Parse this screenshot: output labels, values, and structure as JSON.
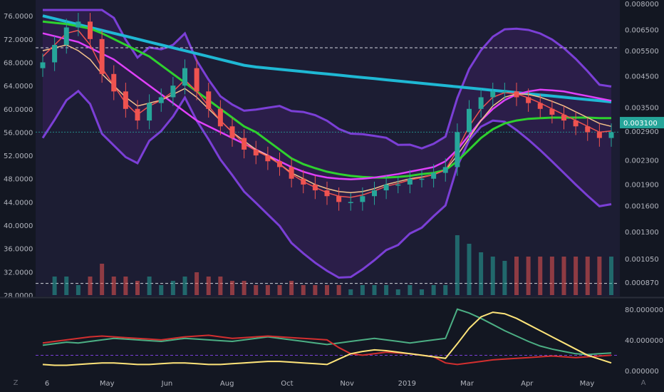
{
  "chart_data": {
    "type": "candlestick",
    "colors": {
      "background": "#131722",
      "panel": "#1c1d33",
      "band_fill": "#2e1f4d",
      "band_line": "#7b3fd6",
      "candle_up": "#26a69a",
      "candle_down": "#ef5350",
      "ma_cyan": "#1fb8d4",
      "ma_green": "#2ed12e",
      "ma_magenta": "#e040fb",
      "ma_orange": "#f5c38b",
      "ma_red": "#ef5350",
      "current_label": "#26a69a",
      "osc_green": "#4caf84",
      "osc_red": "#d32f2f",
      "osc_yellow": "#ffe57a",
      "text": "#b2b5be"
    },
    "left_axis": {
      "ticks": [
        "76.0000",
        "72.0000",
        "68.0000",
        "64.0000",
        "60.0000",
        "56.0000",
        "52.0000",
        "48.0000",
        "44.0000",
        "40.0000",
        "36.0000",
        "32.0000",
        "28.0000"
      ],
      "range": [
        28,
        77
      ]
    },
    "right_axis": {
      "scale": "log",
      "ticks": [
        "0.008000",
        "0.006500",
        "0.005500",
        "0.004500",
        "0.003500",
        "0.002900",
        "0.002300",
        "0.001900",
        "0.001600",
        "0.001300",
        "0.001050",
        "0.000870"
      ],
      "current_value": "0.003100"
    },
    "oscillator_axis": {
      "ticks": [
        "80.000000",
        "40.000000",
        "0.000000"
      ],
      "range": [
        0,
        90
      ],
      "level_line": 20
    },
    "x_axis": {
      "ticks": [
        "6",
        "May",
        "Jun",
        "Aug",
        "Oct",
        "Nov",
        "2019",
        "Mar",
        "Apr",
        "May"
      ]
    },
    "close_series": [
      68,
      71,
      74,
      75,
      72,
      66,
      63,
      60,
      58,
      61,
      62,
      64,
      67,
      63,
      60,
      57,
      55,
      53,
      52,
      51,
      50,
      48,
      47,
      46,
      45,
      44,
      44,
      45,
      46,
      47,
      47,
      48,
      48,
      49,
      50,
      56,
      60,
      62,
      63,
      63,
      62,
      61,
      60,
      59,
      58,
      57,
      56,
      55,
      56
    ],
    "series": [
      {
        "values": [
          76,
          75.5,
          75,
          74.5,
          74,
          73.5,
          73,
          72.5,
          72,
          71.5,
          71,
          70.5,
          70,
          69.5,
          69,
          68.5,
          68,
          67.5,
          67.2,
          67,
          66.8,
          66.6,
          66.4,
          66.2,
          66,
          65.8,
          65.6,
          65.4,
          65.2,
          65,
          64.8,
          64.6,
          64.4,
          64.2,
          64,
          63.8,
          63.6,
          63.4,
          63.2,
          63,
          62.8,
          62.6,
          62.4,
          62.2,
          62,
          61.8,
          61.6,
          61.4,
          61.2
        ]
      },
      {
        "values": [
          75,
          74.8,
          74.6,
          74.2,
          73.8,
          73,
          72,
          71,
          70,
          69,
          67.5,
          66,
          64.5,
          63,
          61.5,
          60,
          58.5,
          57,
          56,
          54.5,
          53,
          51.5,
          50.5,
          49.8,
          49.2,
          48.8,
          48.5,
          48.3,
          48.2,
          48.2,
          48.3,
          48.5,
          48.8,
          49,
          49.5,
          51,
          53,
          55,
          56.5,
          57.5,
          58,
          58.3,
          58.4,
          58.5,
          58.5,
          58.5,
          58.5,
          58.4,
          58.4
        ]
      },
      {
        "values": [
          73,
          72.5,
          72,
          71.5,
          70.5,
          69.5,
          68.5,
          67,
          65.5,
          64,
          62.5,
          61,
          59.5,
          58,
          57,
          56,
          55,
          54,
          53,
          52,
          51,
          50,
          49.2,
          48.6,
          48.2,
          48,
          47.9,
          48,
          48.2,
          48.5,
          48.8,
          49.2,
          49.6,
          50,
          51,
          53,
          55.5,
          58,
          60,
          61.5,
          62.5,
          63,
          63.3,
          63.2,
          63,
          62.6,
          62.2,
          61.8,
          61.4
        ]
      },
      {
        "values": [
          70,
          70.5,
          71,
          70,
          68.5,
          66,
          64,
          62,
          60.5,
          61,
          61.5,
          62.5,
          63.5,
          62,
          60,
          58,
          56,
          54.5,
          53,
          52,
          50.5,
          49,
          48,
          47,
          46.3,
          45.8,
          45.6,
          45.8,
          46.3,
          47,
          47.5,
          48,
          48.3,
          48.7,
          49.5,
          52,
          55,
          58,
          60.5,
          62,
          62.6,
          62.5,
          62,
          61.3,
          60.5,
          59.5,
          58.5,
          57.5,
          57
        ]
      },
      {
        "values": [
          69,
          71,
          73,
          73.5,
          71,
          67,
          64,
          61,
          59,
          60.5,
          61.5,
          63,
          65,
          63,
          60.5,
          58,
          56,
          54,
          52.8,
          51.8,
          50.5,
          48.8,
          47.5,
          46.5,
          45.6,
          45,
          44.8,
          45.2,
          45.9,
          46.7,
          47.2,
          47.8,
          48.2,
          48.7,
          49.5,
          53,
          57,
          60,
          62,
          62.8,
          62.6,
          61.9,
          61,
          60,
          59,
          58,
          57,
          56,
          56.2
        ]
      }
    ],
    "oscillator_series": [
      {
        "values": [
          33,
          35,
          37,
          36,
          38,
          40,
          42,
          41,
          40,
          39,
          38,
          40,
          42,
          41,
          40,
          39,
          38,
          40,
          42,
          44,
          42,
          40,
          38,
          36,
          34,
          36,
          38,
          40,
          42,
          40,
          38,
          36,
          38,
          40,
          42,
          80,
          75,
          68,
          60,
          52,
          45,
          38,
          32,
          28,
          25,
          22,
          21,
          22,
          23
        ]
      },
      {
        "values": [
          36,
          38,
          40,
          42,
          44,
          45,
          44,
          43,
          42,
          41,
          40,
          42,
          44,
          45,
          46,
          44,
          42,
          43,
          44,
          45,
          44,
          43,
          42,
          41,
          40,
          30,
          22,
          20,
          22,
          24,
          23,
          22,
          20,
          18,
          10,
          8,
          10,
          12,
          14,
          15,
          16,
          17,
          18,
          19,
          18,
          17,
          18,
          19,
          20
        ]
      },
      {
        "values": [
          8,
          7,
          7,
          8,
          9,
          10,
          10,
          9,
          8,
          8,
          9,
          10,
          10,
          9,
          8,
          8,
          9,
          10,
          11,
          12,
          12,
          11,
          10,
          9,
          8,
          15,
          22,
          25,
          27,
          26,
          24,
          22,
          20,
          18,
          16,
          35,
          55,
          70,
          76,
          74,
          68,
          60,
          52,
          44,
          36,
          28,
          20,
          15,
          10
        ]
      }
    ]
  }
}
